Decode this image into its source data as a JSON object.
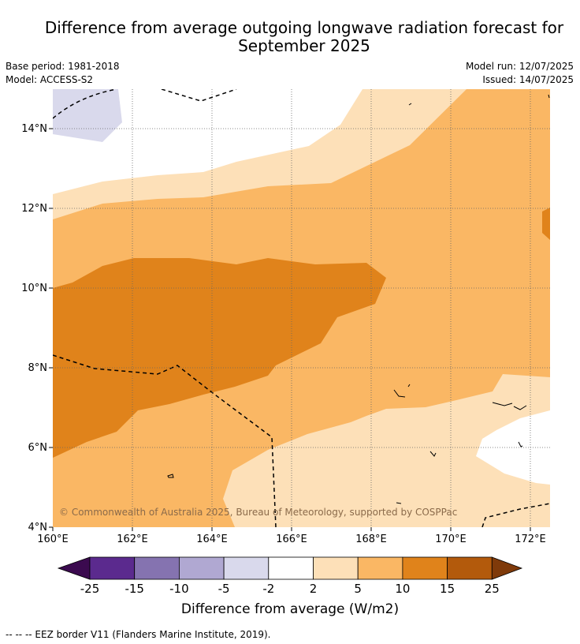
{
  "title_line1": "Difference from average outgoing longwave radiation forecast for",
  "title_line2": "September 2025",
  "base_period": "Base period: 1981-2018",
  "model": "Model: ACCESS-S2",
  "model_run": "Model run: 12/07/2025",
  "issued": "Issued: 14/07/2025",
  "copyright": "© Commonwealth of Australia 2025, Bureau of Meteorology, supported by COSPPac",
  "map": {
    "lat_labels": [
      "4°N",
      "6°N",
      "8°N",
      "10°N",
      "12°N",
      "14°N"
    ],
    "lon_labels": [
      "160°E",
      "162°E",
      "164°E",
      "166°E",
      "168°E",
      "170°E",
      "172°E"
    ],
    "lat_range": [
      4,
      15
    ],
    "lon_range": [
      160,
      172.5
    ]
  },
  "colorbar": {
    "ticks": [
      "-25",
      "-15",
      "-10",
      "-5",
      "-2",
      "2",
      "5",
      "10",
      "15",
      "25"
    ],
    "colors": [
      "#3b0a4f",
      "#5b2a8e",
      "#8573b0",
      "#b0a8d2",
      "#d9d9ec",
      "#ffffff",
      "#fde0b8",
      "#fab764",
      "#e0831b",
      "#b35a0c",
      "#7f3a0a"
    ],
    "title": "Difference from average (W/m2)"
  },
  "footnote": "--  --  -- EEZ border V11 (Flanders Marine Institute, 2019)."
}
